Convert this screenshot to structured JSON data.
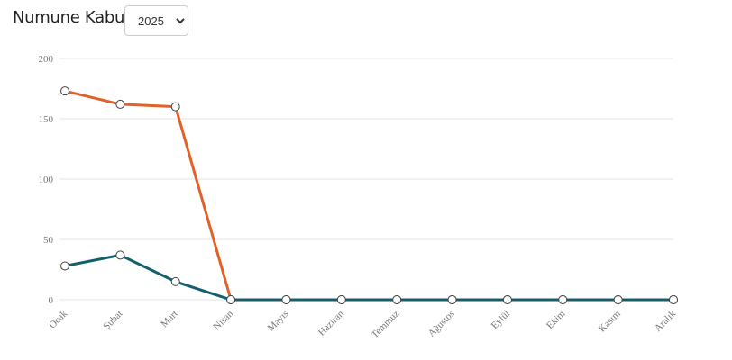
{
  "year_filter": {
    "selected": "2025"
  },
  "chart_data": {
    "type": "line",
    "title": "Numune Kabul",
    "categories": [
      "Ocak",
      "Şubat",
      "Mart",
      "Nisan",
      "Mayıs",
      "Haziran",
      "Temmuz",
      "Ağustos",
      "Eylül",
      "Ekim",
      "Kasım",
      "Aralık"
    ],
    "series": [
      {
        "color": "#e0612a",
        "values": [
          173,
          162,
          160,
          0,
          0,
          0,
          0,
          0,
          0,
          0,
          0,
          0
        ]
      },
      {
        "color": "#135f6e",
        "values": [
          28,
          37,
          15,
          0,
          0,
          0,
          0,
          0,
          0,
          0,
          0,
          0
        ]
      }
    ],
    "ylim": [
      0,
      200
    ],
    "yticks": [
      0,
      50,
      100,
      150,
      200
    ],
    "grid": true
  }
}
